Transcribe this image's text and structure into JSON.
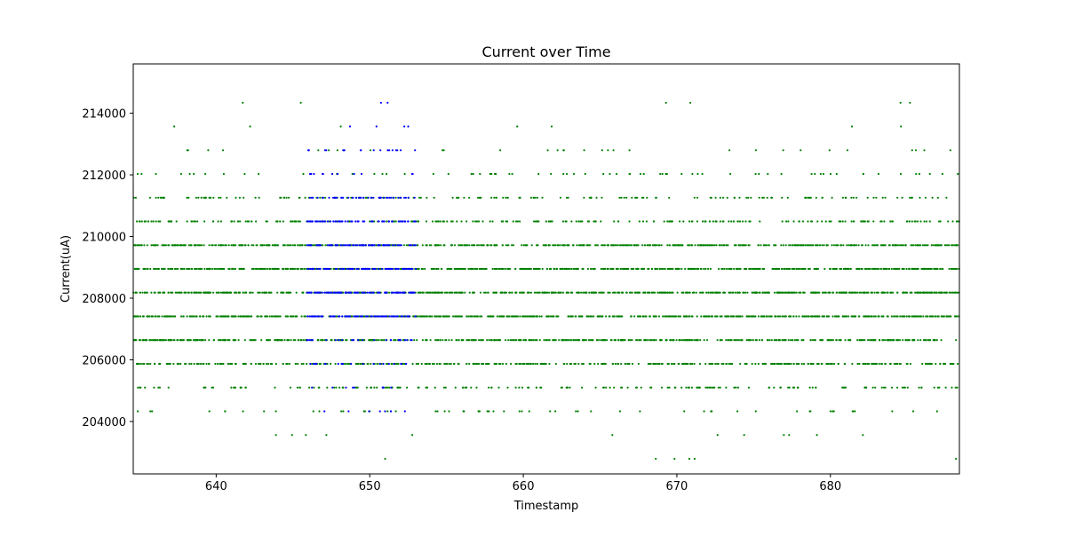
{
  "chart_data": {
    "type": "scatter",
    "title": "Current over Time",
    "xlabel": "Timestamp",
    "ylabel": "Current(uA)",
    "xlim": [
      634.6,
      688.4
    ],
    "ylim": [
      202300,
      215600
    ],
    "x_ticks": [
      640,
      650,
      660,
      670,
      680
    ],
    "y_ticks": [
      204000,
      206000,
      208000,
      210000,
      212000,
      214000
    ],
    "grid": false,
    "legend": "none",
    "y_levels": [
      202790,
      203560,
      204330,
      205100,
      205870,
      206640,
      207410,
      208180,
      208950,
      209720,
      210490,
      211260,
      212030,
      212800,
      213570,
      214340
    ],
    "series": [
      {
        "color": "#008000",
        "x_range": [
          634.6,
          688.4
        ],
        "points_per_level": [
          6,
          12,
          60,
          180,
          420,
          600,
          700,
          720,
          700,
          650,
          260,
          180,
          70,
          30,
          7,
          6
        ]
      },
      {
        "color": "#0000ff",
        "x_range": [
          645.9,
          653.0
        ],
        "points_per_level": [
          0,
          0,
          8,
          10,
          22,
          25,
          80,
          95,
          90,
          85,
          60,
          45,
          12,
          18,
          4,
          2
        ]
      }
    ]
  }
}
